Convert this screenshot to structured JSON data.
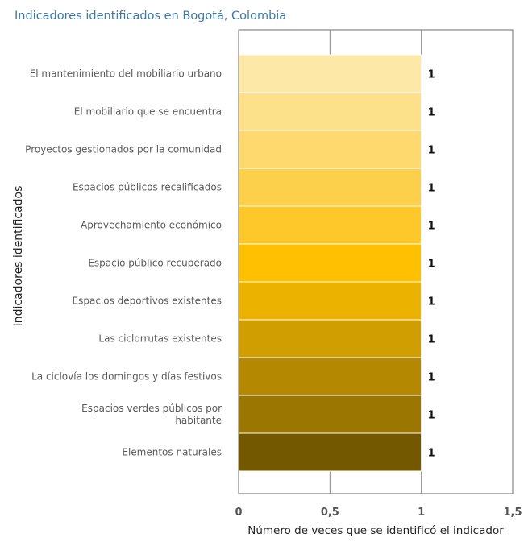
{
  "chart_data": {
    "type": "bar",
    "orientation": "horizontal",
    "title": "Indicadores identificados en Bogotá, Colombia",
    "xlabel": "Número de veces que se identificó el indicador",
    "ylabel": "Indicadores identificados",
    "xlim": [
      0,
      1.5
    ],
    "x_ticks": [
      "0",
      "0,5",
      "1",
      "1,5"
    ],
    "x_tick_values": [
      0,
      0.5,
      1,
      1.5
    ],
    "grid": true,
    "categories": [
      [
        "El mantenimiento del mobiliario urbano"
      ],
      [
        "El mobiliario que se encuentra"
      ],
      [
        "Proyectos gestionados por la comunidad"
      ],
      [
        "Espacios públicos recalificados"
      ],
      [
        "Aprovechamiento económico"
      ],
      [
        "Espacio público recuperado"
      ],
      [
        "Espacios deportivos existentes"
      ],
      [
        "Las ciclorrutas existentes"
      ],
      [
        "La ciclovía los domingos y días festivos"
      ],
      [
        "Espacios verdes públicos por",
        "habitante"
      ],
      [
        "Elementos naturales"
      ]
    ],
    "values": [
      1,
      1,
      1,
      1,
      1,
      1,
      1,
      1,
      1,
      1,
      1
    ],
    "data_labels": [
      "1",
      "1",
      "1",
      "1",
      "1",
      "1",
      "1",
      "1",
      "1",
      "1",
      "1"
    ],
    "bar_colors": [
      "#fde8a8",
      "#fde08a",
      "#fdd96e",
      "#fdd04b",
      "#fec82a",
      "#fec000",
      "#ecb200",
      "#d09e00",
      "#b48800",
      "#9b7600",
      "#745800"
    ]
  }
}
